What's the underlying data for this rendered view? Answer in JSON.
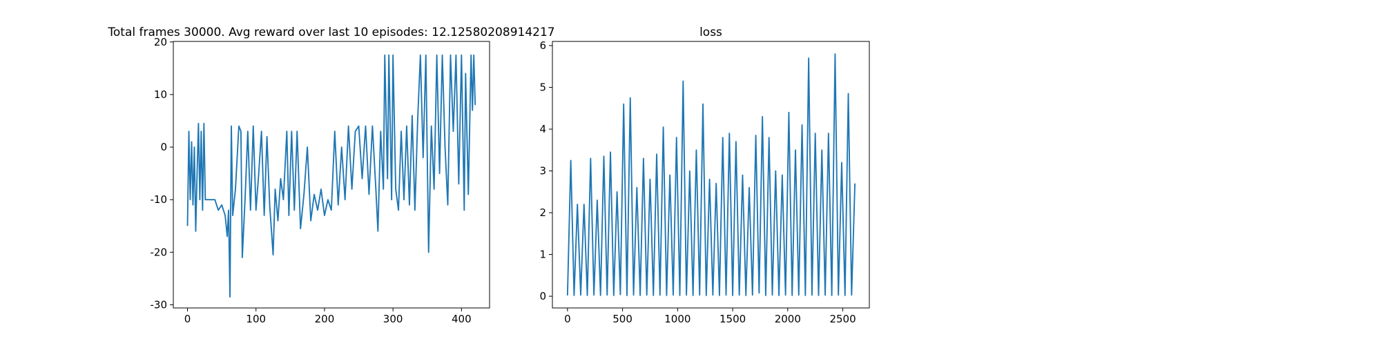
{
  "chart_data": [
    {
      "type": "line",
      "title": "Total frames 30000. Avg reward over last 10 episodes: 12.12580208914217",
      "x": [
        0,
        2,
        4,
        6,
        8,
        10,
        12,
        14,
        16,
        18,
        20,
        22,
        24,
        26,
        30,
        40,
        45,
        50,
        55,
        58,
        60,
        62,
        64,
        66,
        70,
        75,
        78,
        80,
        84,
        88,
        92,
        96,
        100,
        104,
        108,
        112,
        116,
        120,
        125,
        128,
        132,
        136,
        140,
        145,
        148,
        152,
        156,
        160,
        165,
        170,
        175,
        180,
        185,
        190,
        195,
        200,
        205,
        210,
        215,
        220,
        225,
        230,
        235,
        240,
        245,
        250,
        255,
        260,
        265,
        270,
        275,
        278,
        282,
        286,
        288,
        292,
        294,
        298,
        300,
        304,
        308,
        312,
        316,
        320,
        324,
        328,
        332,
        336,
        340,
        344,
        348,
        352,
        356,
        360,
        364,
        368,
        372,
        376,
        380,
        384,
        388,
        392,
        396,
        400,
        404,
        406,
        410,
        414,
        416,
        418,
        420
      ],
      "series": [
        {
          "color": "#1f77b4",
          "values": [
            -15,
            3,
            -10,
            1,
            -11,
            0,
            -16,
            -5,
            4.5,
            -10,
            3,
            -12,
            4.5,
            -10,
            -10,
            -10,
            -12,
            -11,
            -13,
            -17,
            -12,
            -28.5,
            4,
            -13,
            -8,
            4,
            3,
            -21,
            -10,
            3,
            -12,
            4,
            -12,
            -5,
            3,
            -13,
            2,
            -11,
            -20.5,
            -8,
            -14,
            -6,
            -10,
            3,
            -13,
            3,
            -12,
            3,
            -15.5,
            -9,
            0,
            -14,
            -9,
            -12,
            -8,
            -13,
            -10,
            -12,
            3,
            -11,
            0,
            -10,
            4,
            -8,
            3,
            4,
            -6,
            4,
            -9,
            4,
            -8,
            -16,
            3,
            -8,
            17.5,
            -6,
            17.5,
            -10,
            17.5,
            -8,
            -12,
            3,
            -10,
            4,
            -11,
            6,
            -12,
            5,
            17.5,
            -2,
            17.5,
            -20,
            4,
            -8,
            17.5,
            -5,
            17.5,
            0,
            -11,
            17.5,
            3,
            17.5,
            -7,
            17.5,
            -12,
            14,
            -9,
            17.5,
            7,
            17.5,
            8
          ]
        }
      ],
      "xlim": [
        -20.7,
        441
      ],
      "xticks": [
        0,
        100,
        200,
        300,
        400
      ],
      "ylim": [
        -30.6,
        20.1
      ],
      "yticks": [
        -30,
        -20,
        -10,
        0,
        10,
        20
      ]
    },
    {
      "type": "line",
      "title": "loss",
      "x": [
        0,
        30,
        60,
        90,
        120,
        150,
        180,
        210,
        240,
        270,
        300,
        330,
        360,
        390,
        420,
        450,
        480,
        510,
        540,
        570,
        600,
        630,
        660,
        690,
        720,
        750,
        780,
        810,
        840,
        870,
        900,
        930,
        960,
        990,
        1020,
        1050,
        1080,
        1110,
        1140,
        1170,
        1200,
        1230,
        1260,
        1290,
        1320,
        1350,
        1380,
        1410,
        1440,
        1470,
        1500,
        1530,
        1560,
        1590,
        1620,
        1650,
        1680,
        1710,
        1740,
        1770,
        1800,
        1830,
        1860,
        1890,
        1920,
        1950,
        1980,
        2010,
        2040,
        2070,
        2100,
        2130,
        2160,
        2190,
        2220,
        2250,
        2280,
        2310,
        2340,
        2370,
        2400,
        2430,
        2460,
        2490,
        2520,
        2550,
        2580,
        2610
      ],
      "series": [
        {
          "color": "#1f77b4",
          "values": [
            0.02,
            3.25,
            0.02,
            2.2,
            0.03,
            2.2,
            0.02,
            3.3,
            0.03,
            2.3,
            0.02,
            3.35,
            0.03,
            3.45,
            0.02,
            2.5,
            0.04,
            4.6,
            0.02,
            4.75,
            0.03,
            2.6,
            0.02,
            3.3,
            0.03,
            2.8,
            0.02,
            3.4,
            0.03,
            4.05,
            0.02,
            2.9,
            0.03,
            3.8,
            0.02,
            5.15,
            0.03,
            3.0,
            0.02,
            3.5,
            0.03,
            4.6,
            0.02,
            2.8,
            0.03,
            2.7,
            0.02,
            3.8,
            0.03,
            3.9,
            0.02,
            3.7,
            0.03,
            2.9,
            0.02,
            2.6,
            0.03,
            3.85,
            0.08,
            4.3,
            0.02,
            3.8,
            0.03,
            3.0,
            0.02,
            2.9,
            0.03,
            4.4,
            0.02,
            3.5,
            0.03,
            4.1,
            0.02,
            5.7,
            0.03,
            3.9,
            0.02,
            3.5,
            0.03,
            3.9,
            0.02,
            5.8,
            0.03,
            3.2,
            0.02,
            4.85,
            0.03,
            2.7
          ]
        }
      ],
      "xlim": [
        -137,
        2741
      ],
      "xticks": [
        0,
        500,
        1000,
        1500,
        2000,
        2500
      ],
      "ylim": [
        -0.28,
        6.1
      ],
      "yticks": [
        0,
        1,
        2,
        3,
        4,
        5,
        6
      ]
    }
  ]
}
